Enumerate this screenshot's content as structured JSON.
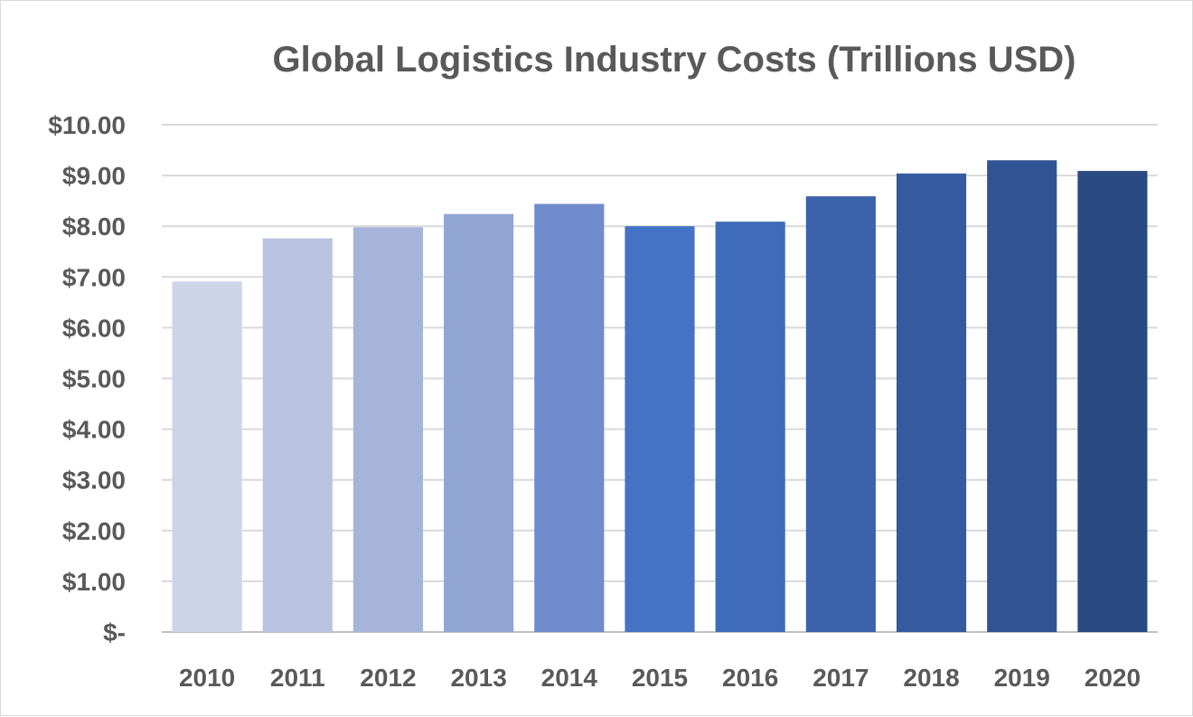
{
  "chart_data": {
    "type": "bar",
    "title": "Global Logistics Industry Costs (Trillions USD)",
    "xlabel": "",
    "ylabel": "",
    "categories": [
      "2010",
      "2011",
      "2012",
      "2013",
      "2014",
      "2015",
      "2016",
      "2017",
      "2018",
      "2019",
      "2020"
    ],
    "values": [
      6.91,
      7.76,
      7.98,
      8.24,
      8.44,
      8.0,
      8.09,
      8.59,
      9.04,
      9.3,
      9.09
    ],
    "ylim": [
      0,
      10
    ],
    "y_ticks": [
      0,
      1,
      2,
      3,
      4,
      5,
      6,
      7,
      8,
      9,
      10
    ],
    "y_tick_labels": [
      "$-",
      "$1.00",
      "$2.00",
      "$3.00",
      "$4.00",
      "$5.00",
      "$6.00",
      "$7.00",
      "$8.00",
      "$9.00",
      "$10.00"
    ],
    "grid": true,
    "legend": "none",
    "colors": [
      "#cdd3e9",
      "#b9c3e2",
      "#a6b4da",
      "#90a5d4",
      "#6f8bcb",
      "#4472c4",
      "#3f6cb9",
      "#3a63ab",
      "#345b9f",
      "#2f5393",
      "#2a4a82"
    ]
  }
}
